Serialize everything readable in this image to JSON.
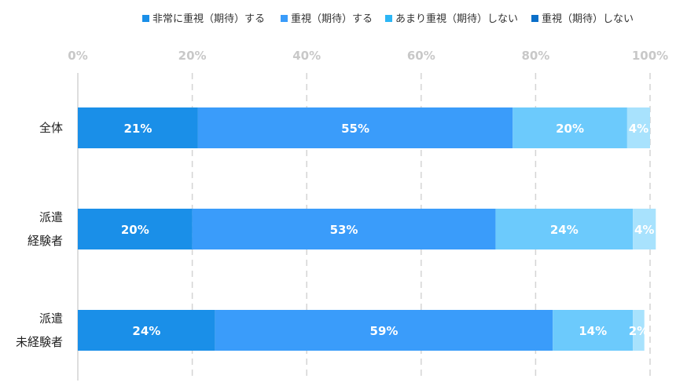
{
  "chart_data": {
    "type": "bar",
    "orientation": "horizontal",
    "stacked": true,
    "categories": [
      [
        "全体"
      ],
      [
        "派遣",
        "経験者"
      ],
      [
        "派遣",
        "未経験者"
      ]
    ],
    "series": [
      {
        "name": "非常に重視（期待）する",
        "values": [
          21,
          20,
          24
        ],
        "labels": [
          "21%",
          "20%",
          "24%"
        ],
        "color": "#1a8fe8",
        "legend_color": "#1a8fe8"
      },
      {
        "name": "重視（期待）する",
        "values": [
          55,
          53,
          59
        ],
        "labels": [
          "55%",
          "53%",
          "59%"
        ],
        "color": "#3a9cfa",
        "legend_color": "#3a9cfa"
      },
      {
        "name": "あまり重視（期待）しない",
        "values": [
          20,
          24,
          14
        ],
        "labels": [
          "20%",
          "24%",
          "14%"
        ],
        "color": "#6ccafc",
        "legend_color": "#2cb6f5"
      },
      {
        "name": "重視（期待）しない",
        "values": [
          4,
          4,
          2
        ],
        "labels": [
          "4%",
          "4%",
          "2%"
        ],
        "color": "#a8e2fd",
        "legend_color": "#0a6fc9"
      }
    ],
    "xlim": [
      0,
      100
    ],
    "x_ticks": [
      0,
      20,
      40,
      60,
      80,
      100
    ],
    "x_tick_labels": [
      "0%",
      "20%",
      "40%",
      "60%",
      "80%",
      "100%"
    ],
    "x_axis_position": "top",
    "grid": true,
    "legend_position": "top-right"
  }
}
